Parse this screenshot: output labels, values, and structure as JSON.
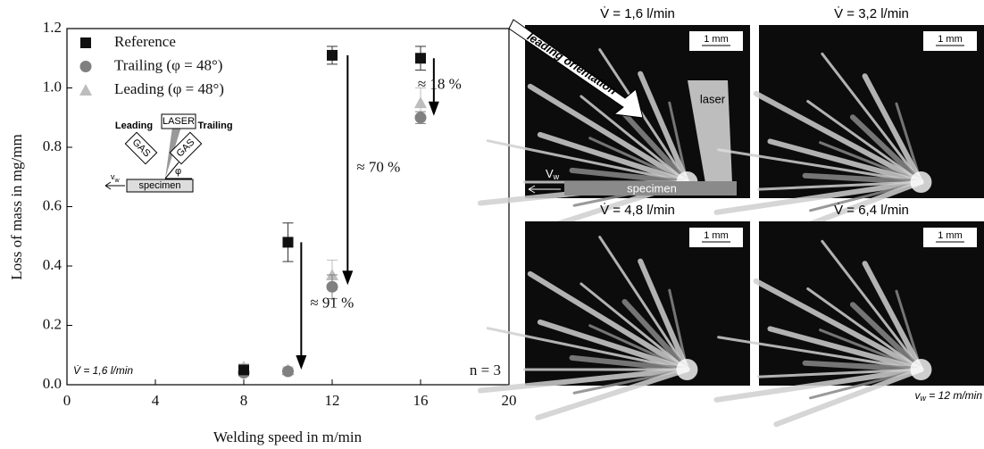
{
  "chart_data": {
    "type": "scatter",
    "xlabel": "Welding speed in m/min",
    "ylabel": "Loss of mass in mg/mm",
    "xlim": [
      0,
      20
    ],
    "ylim": [
      0,
      1.2
    ],
    "xticks": [
      0,
      4,
      8,
      12,
      16,
      20
    ],
    "yticks": [
      {
        "value": 0,
        "label": "0.0"
      },
      0.2,
      0.4,
      0.6,
      0.8,
      {
        "value": 1,
        "label": "1.0"
      },
      1.2
    ],
    "legend": "upper left",
    "series": [
      {
        "name": "Reference",
        "color": "#111111",
        "marker": "square",
        "x": [
          8,
          10,
          12,
          16
        ],
        "values": [
          0.05,
          0.48,
          1.11,
          1.1
        ],
        "errors": [
          0.01,
          0.065,
          0.03,
          0.04
        ]
      },
      {
        "name": "Trailing (φ = 48°)",
        "color": "#808080",
        "marker": "circle",
        "x": [
          8,
          10,
          12,
          16
        ],
        "values": [
          0.04,
          0.045,
          0.33,
          0.9
        ],
        "errors": [
          0.01,
          0.01,
          0.04,
          0.02
        ]
      },
      {
        "name": "Leading (φ = 48°)",
        "color": "#bdbdbd",
        "marker": "triangle",
        "x": [
          8,
          10,
          12,
          16
        ],
        "values": [
          0.06,
          0.05,
          0.37,
          0.95
        ],
        "errors": [
          0.01,
          0.01,
          0.05,
          0.05
        ]
      }
    ],
    "annotations": {
      "reduction_12": "≈ 70 %",
      "reduction_10": "≈ 91 %",
      "reduction_16": "≈ 18 %",
      "samples": "n = 3",
      "flow_rate": "V̇ = 1,6 l/min"
    },
    "inset": {
      "leading": "Leading",
      "laser": "LASER",
      "trailing": "Trailing",
      "gas_left": "GAS",
      "gas_right": "GAS",
      "v": "v",
      "v_sub": "w",
      "phi": "φ",
      "specimen": "specimen"
    }
  },
  "photos": [
    {
      "title": "V̇ = 1,6 l/min",
      "scale": "1 mm"
    },
    {
      "title": "V̇ = 3,2 l/min",
      "scale": "1 mm"
    },
    {
      "title": "V̇ = 4,8 l/min",
      "scale": "1 mm"
    },
    {
      "title": "V̇ = 6,4 l/min",
      "scale": "1 mm"
    }
  ],
  "photo_labels": {
    "orientation": "leading orientation",
    "laser": "laser",
    "specimen": "specimen",
    "v": "V",
    "v_sub": "w"
  },
  "footnote": {
    "v": "v",
    "v_sub": "w",
    "text": " = 12 m/min"
  }
}
